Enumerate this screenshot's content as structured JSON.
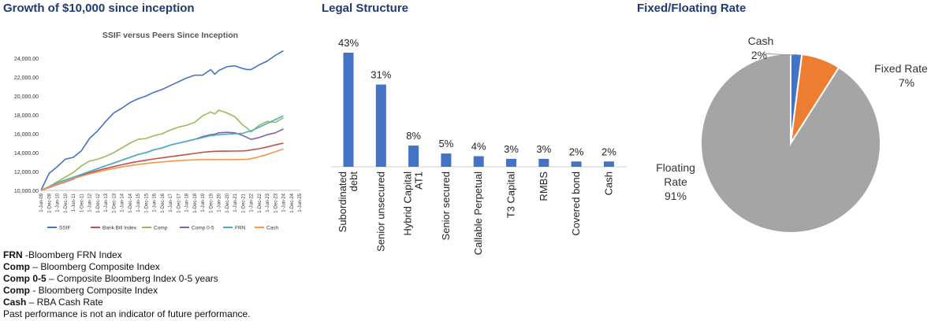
{
  "sections": {
    "growth_title": "Growth of $10,000 since inception",
    "legal_title": "Legal Structure",
    "rate_title": "Fixed/Floating Rate"
  },
  "notes": [
    {
      "key": "FRN",
      "sep": " -",
      "text": "Bloomberg FRN Index"
    },
    {
      "key": "Comp",
      "sep": " – ",
      "text": "Bloomberg Composite Index"
    },
    {
      "key": "Comp 0-5",
      "sep": " – ",
      "text": "Composite Bloomberg Index 0-5 years"
    },
    {
      "key": "Comp",
      "sep": " - ",
      "text": "Bloomberg Composite Index"
    },
    {
      "key": "Cash",
      "sep": " – ",
      "text": "RBA Cash Rate"
    },
    {
      "key": "",
      "sep": "",
      "text": "Past performance is not an indicator of future performance."
    }
  ],
  "chart_data": [
    {
      "type": "line",
      "title": "SSIF versus Peers Since Inception",
      "ylim": [
        10000,
        25000
      ],
      "yticks": [
        10000,
        12000,
        14000,
        16000,
        18000,
        20000,
        22000,
        24000
      ],
      "ytick_labels": [
        "10,000.00",
        "12,000.00",
        "14,000.00",
        "16,000.00",
        "18,000.00",
        "20,000.00",
        "22,000.00",
        "24,000.00"
      ],
      "xticks": [
        "1-Jun-09",
        "1-Dec-09",
        "1-Jun-10",
        "1-Dec-10",
        "1-Jun-11",
        "1-Dec-11",
        "1-Jun-12",
        "1-Dec-12",
        "1-Jun-13",
        "1-Dec-13",
        "1-Jun-14",
        "1-Dec-14",
        "1-Jun-15",
        "1-Dec-15",
        "1-Jun-16",
        "1-Dec-16",
        "1-Jun-17",
        "1-Dec-17",
        "1-Jun-18",
        "1-Dec-18",
        "1-Jun-19",
        "1-Dec-19",
        "1-Jun-20",
        "1-Dec-20",
        "1-Jun-21",
        "1-Dec-21",
        "1-Jun-22",
        "1-Dec-22",
        "1-Jun-23",
        "1-Dec-23",
        "1-Jun-24",
        "1-Dec-24",
        "1-Jun-25"
      ],
      "x": [
        2009.42,
        2009.92,
        2010.42,
        2010.92,
        2011.42,
        2011.92,
        2012.42,
        2012.92,
        2013.42,
        2013.92,
        2014.42,
        2014.92,
        2015.42,
        2015.92,
        2016.42,
        2016.92,
        2017.42,
        2017.92,
        2018.42,
        2018.92,
        2019.42,
        2019.92,
        2020.17,
        2020.42,
        2020.92,
        2021.42,
        2021.92,
        2022.17,
        2022.42,
        2022.92,
        2023.42,
        2023.92,
        2024.42,
        2024.92
      ],
      "legend_position": "bottom",
      "series": [
        {
          "name": "SSIF",
          "color": "#4472c4",
          "values": [
            10000,
            11800,
            12500,
            13300,
            13500,
            14200,
            15500,
            16300,
            17300,
            18200,
            18700,
            19300,
            19700,
            20000,
            20400,
            20700,
            21100,
            21500,
            21900,
            22200,
            22200,
            22800,
            22300,
            22700,
            23100,
            23200,
            22900,
            22800,
            22800,
            23300,
            23700,
            24300,
            24800,
            null
          ]
        },
        {
          "name": "Bank Bill Index",
          "color": "#c0504d",
          "values": [
            10000,
            10350,
            10650,
            10950,
            11250,
            11550,
            11850,
            12100,
            12320,
            12520,
            12720,
            12900,
            13060,
            13200,
            13330,
            13450,
            13570,
            13680,
            13800,
            13920,
            14030,
            14110,
            14140,
            14150,
            14160,
            14170,
            14180,
            14220,
            14280,
            14420,
            14600,
            14820,
            15000,
            null
          ]
        },
        {
          "name": "Comp",
          "color": "#9bbb59",
          "values": [
            10000,
            10400,
            10900,
            11400,
            11900,
            12600,
            13100,
            13300,
            13600,
            14000,
            14500,
            15000,
            15400,
            15500,
            15800,
            16000,
            16400,
            16700,
            16900,
            17200,
            17900,
            18300,
            18100,
            18500,
            18200,
            17800,
            16900,
            16600,
            16200,
            16900,
            17300,
            17200,
            17700,
            null
          ]
        },
        {
          "name": "Comp 0-5",
          "color": "#8064a2",
          "values": [
            10000,
            10300,
            10600,
            10900,
            11200,
            11600,
            12000,
            12300,
            12600,
            12900,
            13200,
            13500,
            13800,
            14000,
            14300,
            14500,
            14800,
            15000,
            15200,
            15400,
            15700,
            15900,
            15950,
            16100,
            16150,
            16100,
            15800,
            15600,
            15400,
            15600,
            15900,
            16100,
            16500,
            null
          ]
        },
        {
          "name": "FRN",
          "color": "#4bacc6",
          "values": [
            10000,
            10400,
            10800,
            11100,
            11400,
            11700,
            12000,
            12300,
            12600,
            12900,
            13200,
            13500,
            13800,
            14000,
            14300,
            14500,
            14800,
            15000,
            15200,
            15400,
            15600,
            15800,
            15850,
            15900,
            15950,
            16000,
            16050,
            16200,
            16300,
            16700,
            17100,
            17500,
            17900,
            null
          ]
        },
        {
          "name": "Cash",
          "color": "#f79646",
          "values": [
            10000,
            10350,
            10650,
            10950,
            11250,
            11500,
            11750,
            11950,
            12150,
            12320,
            12480,
            12620,
            12740,
            12850,
            12940,
            13020,
            13090,
            13150,
            13200,
            13230,
            13260,
            13270,
            13270,
            13270,
            13270,
            13270,
            13280,
            13300,
            13360,
            13560,
            13820,
            14090,
            14380,
            null
          ]
        }
      ]
    },
    {
      "type": "bar",
      "categories": [
        "Subordinated debt",
        "Senior unsecured",
        "Hybrid Capital AT1",
        "Senior secured",
        "Callable Perpetual",
        "T3 Capital",
        "RMBS",
        "Covered bond",
        "Cash"
      ],
      "category_lines": [
        [
          "Subordinated",
          "debt"
        ],
        [
          "Senior unsecured"
        ],
        [
          "Hybrid Capital",
          "AT1"
        ],
        [
          "Senior secured"
        ],
        [
          "Callable Perpetual"
        ],
        [
          "T3 Capital"
        ],
        [
          "RMBS"
        ],
        [
          "Covered bond"
        ],
        [
          "Cash"
        ]
      ],
      "values": [
        43,
        31,
        8,
        5,
        4,
        3,
        3,
        2,
        2
      ],
      "value_labels": [
        "43%",
        "31%",
        "8%",
        "5%",
        "4%",
        "3%",
        "3%",
        "2%",
        "2%"
      ],
      "unit": "%",
      "color": "#4472c4"
    },
    {
      "type": "pie",
      "slices": [
        {
          "label": "Cash",
          "pct_label": "2%",
          "value": 2,
          "color": "#4472c4"
        },
        {
          "label": "Fixed Rate",
          "pct_label": "7%",
          "value": 7,
          "color": "#ed7d31"
        },
        {
          "label": "Floating Rate",
          "pct_label": "91%",
          "value": 91,
          "color": "#a5a5a5"
        }
      ]
    }
  ]
}
